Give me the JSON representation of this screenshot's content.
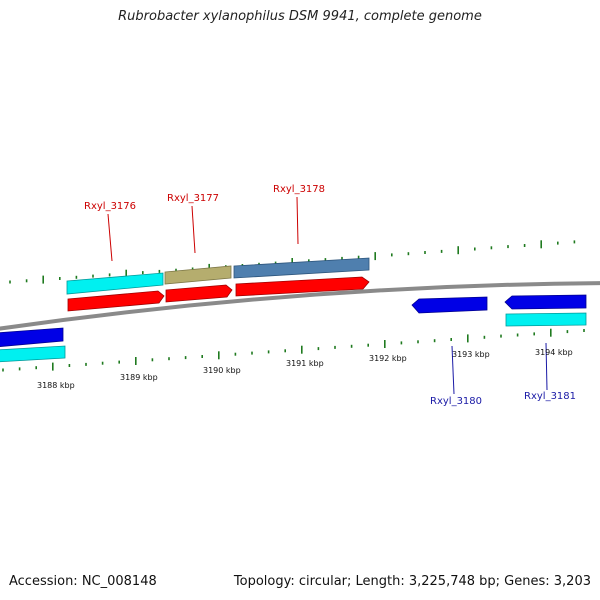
{
  "title": "Rubrobacter xylanophilus DSM 9941, complete genome",
  "footer": {
    "accession": "Accession: NC_008148",
    "summary": "Topology: circular; Length: 3,225,748 bp; Genes: 3,203"
  },
  "scale": {
    "kbp_labels": [
      "3188 kbp",
      "3189 kbp",
      "3190 kbp",
      "3191 kbp",
      "3192 kbp",
      "3193 kbp",
      "3194 kbp"
    ]
  },
  "genes": [
    {
      "label": "Rxyl_3176",
      "strand": "forward",
      "color": "#cc0000"
    },
    {
      "label": "Rxyl_3177",
      "strand": "forward",
      "color": "#cc0000"
    },
    {
      "label": "Rxyl_3178",
      "strand": "forward",
      "color": "#cc0000"
    },
    {
      "label": "Rxyl_3180",
      "strand": "reverse",
      "color": "#1a1aa6"
    },
    {
      "label": "Rxyl_3181",
      "strand": "reverse",
      "color": "#1a1aa6"
    }
  ],
  "colors": {
    "backbone": "#8a8a8a",
    "tick": "#1f7a1f",
    "cds_forward": "#ff0000",
    "cds_reverse": "#0000e6",
    "feature_cyan": "#00f0f0",
    "feature_olive": "#b5ad6e",
    "feature_steel": "#4f7fae"
  }
}
